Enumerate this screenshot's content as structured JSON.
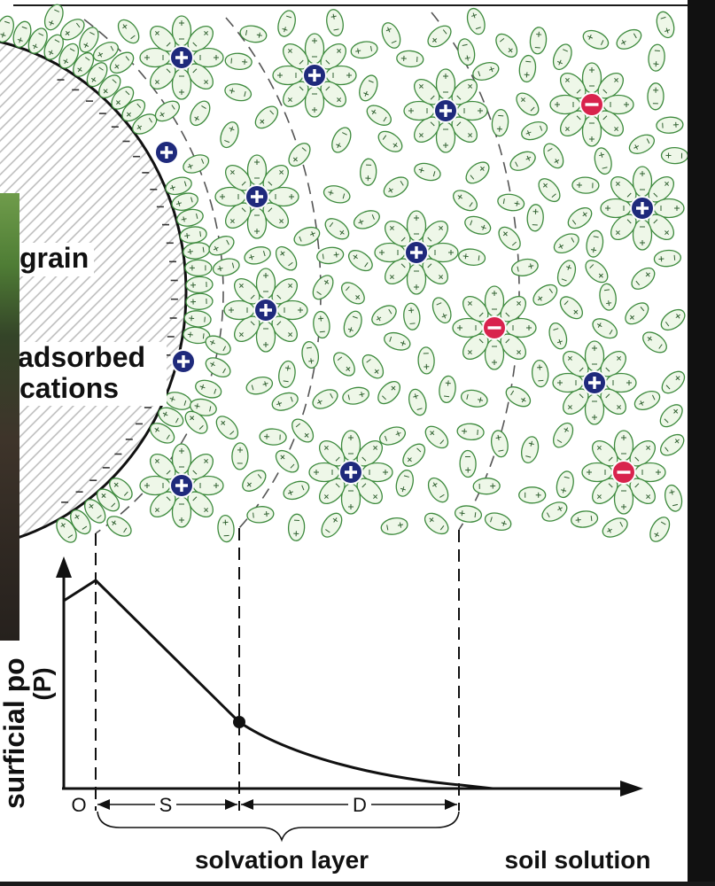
{
  "labels": {
    "grain": "grain",
    "adsorbed": "adsorbed",
    "cations": "cations",
    "y_axis_line1": "surficial po",
    "y_axis_line2": "(P)",
    "origin": "O",
    "stern_layer": "S",
    "diffuse_layer": "D",
    "solvation_layer": "solvation layer",
    "soil_solution": "soil solution"
  },
  "ions": [
    {
      "charge": "+"
    },
    {
      "charge": "+"
    },
    {
      "charge": "+"
    },
    {
      "charge": "-"
    },
    {
      "charge": "+"
    },
    {
      "charge": "+"
    },
    {
      "charge": "+"
    },
    {
      "charge": "+"
    },
    {
      "charge": "+"
    },
    {
      "charge": "-"
    },
    {
      "charge": "+"
    },
    {
      "charge": "+"
    },
    {
      "charge": "+"
    },
    {
      "charge": "-"
    },
    {
      "charge": "+"
    }
  ],
  "colors": {
    "cation": "#1f2a7c",
    "anion": "#d8234d",
    "water_fill": "#eef7e8",
    "water_stroke": "#3d8a3d",
    "water_mark": "#2f5f2f",
    "hatch": "#b9b9b9"
  }
}
